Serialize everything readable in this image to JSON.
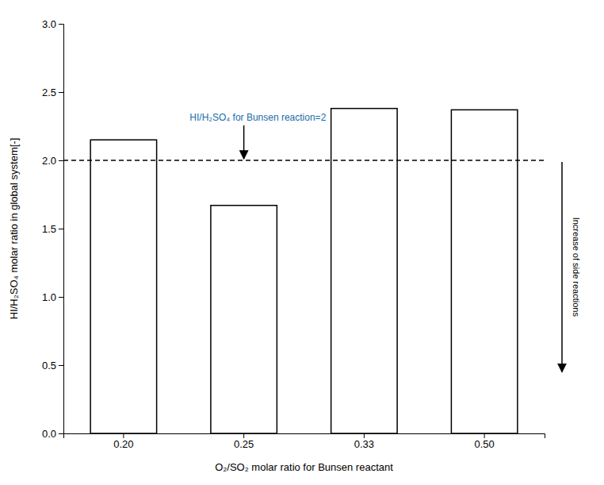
{
  "chart_data": {
    "type": "bar",
    "categories": [
      "0.20",
      "0.25",
      "0.33",
      "0.50"
    ],
    "values": [
      2.15,
      1.67,
      2.38,
      2.37
    ],
    "color": "white",
    "xlabel": "O₂/SO₂ molar ratio for Bunsen reactant",
    "ylabel": "HI/H₂SO₄ molar ratio in global system[-]",
    "ylim": [
      0.0,
      3.0
    ],
    "yticks": [
      {
        "value": 0.0,
        "label": "0.0"
      },
      0.5,
      {
        "value": 1.0,
        "label": "1.0"
      },
      1.5,
      {
        "value": 2.0,
        "label": "2.0"
      },
      2.5,
      {
        "value": 3.0,
        "label": "3.0"
      }
    ],
    "grid": false,
    "annotations": [
      {
        "text": "HI/H₂SO₄ for Bunsen reaction=2",
        "y": 2.0,
        "color": "#1a6ca8",
        "line_style": "dashed"
      },
      {
        "text": "Increase of side reactions"
      }
    ]
  }
}
